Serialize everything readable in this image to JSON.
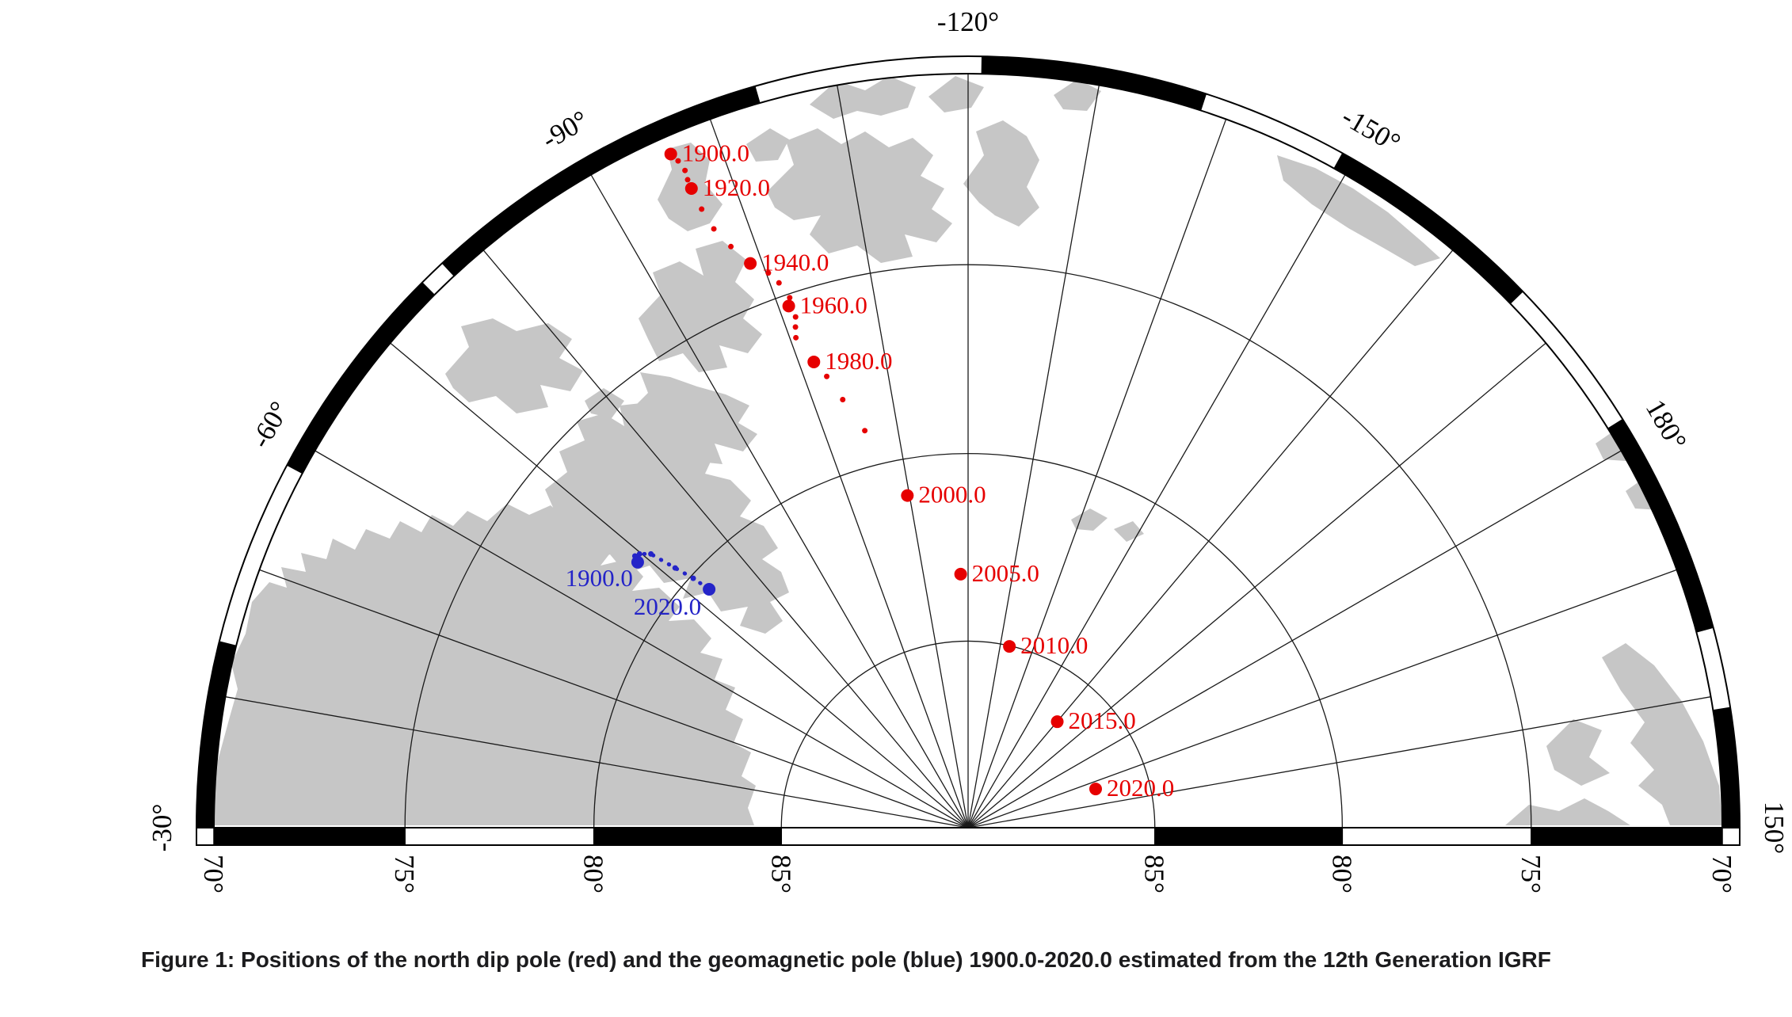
{
  "figure": {
    "caption": "Figure 1: Positions of the north dip pole (red) and the geomagnetic pole (blue) 1900.0-2020.0 estimated from the 12th Generation IGRF"
  },
  "chart_data": {
    "type": "scatter",
    "subtype": "polar-map-track",
    "projection": {
      "kind": "north-polar-stereographic",
      "lat_edge_deg": 70,
      "lon_top_deg": -120,
      "lon_left_edge_deg": -30,
      "lon_right_edge_deg": 150,
      "lon_grid_step_deg": 10,
      "lat_grid_circles_deg": [
        75,
        80,
        85
      ]
    },
    "colors": {
      "dip_pole": "#e60000",
      "geomagnetic_pole": "#2424c8",
      "land": "#c6c6c6",
      "grid": "#1a1a1a",
      "frame": "#000000"
    },
    "longitude_labels": [
      {
        "text": "-30°",
        "lon_deg": -30
      },
      {
        "text": "-60°",
        "lon_deg": -60
      },
      {
        "text": "-90°",
        "lon_deg": -90
      },
      {
        "text": "-120°",
        "lon_deg": -120
      },
      {
        "text": "-150°",
        "lon_deg": -150
      },
      {
        "text": "180°",
        "lon_deg": -180
      },
      {
        "text": "150°",
        "lon_deg": -210
      }
    ],
    "latitude_labels": [
      {
        "text": "70°",
        "lat_deg": 70,
        "side": "left"
      },
      {
        "text": "75°",
        "lat_deg": 75,
        "side": "left"
      },
      {
        "text": "80°",
        "lat_deg": 80,
        "side": "left"
      },
      {
        "text": "85°",
        "lat_deg": 85,
        "side": "left"
      },
      {
        "text": "85°",
        "lat_deg": 85,
        "side": "right"
      },
      {
        "text": "80°",
        "lat_deg": 80,
        "side": "right"
      },
      {
        "text": "75°",
        "lat_deg": 75,
        "side": "right"
      },
      {
        "text": "70°",
        "lat_deg": 70,
        "side": "right"
      }
    ],
    "series": [
      {
        "id": "dip_pole",
        "name": "north dip pole",
        "color_key": "dip_pole",
        "line_style": "none",
        "points": [
          {
            "year": "1900.0",
            "lat": 70.46,
            "lon": -96.19,
            "labeled": true,
            "label_anchor": "start",
            "label_dx": 14,
            "label_dy": 9
          },
          {
            "year": "1905.0",
            "lat": 70.7,
            "lon": -96.5,
            "labeled": false
          },
          {
            "year": "1910.0",
            "lat": 71.0,
            "lon": -96.7,
            "labeled": false
          },
          {
            "year": "1915.0",
            "lat": 71.25,
            "lon": -96.6,
            "labeled": false
          },
          {
            "year": "1920.0",
            "lat": 71.5,
            "lon": -96.6,
            "labeled": true,
            "label_anchor": "start",
            "label_dx": 14,
            "label_dy": 9
          },
          {
            "year": "1925.0",
            "lat": 72.1,
            "lon": -96.7,
            "labeled": false
          },
          {
            "year": "1930.0",
            "lat": 72.7,
            "lon": -97.0,
            "labeled": false
          },
          {
            "year": "1935.0",
            "lat": 73.3,
            "lon": -97.8,
            "labeled": false
          },
          {
            "year": "1940.0",
            "lat": 73.9,
            "lon": -98.9,
            "labeled": true,
            "label_anchor": "start",
            "label_dx": 14,
            "label_dy": 9
          },
          {
            "year": "1945.0",
            "lat": 74.3,
            "lon": -100.2,
            "labeled": false
          },
          {
            "year": "1950.0",
            "lat": 74.64,
            "lon": -100.86,
            "labeled": false
          },
          {
            "year": "1955.0",
            "lat": 75.1,
            "lon": -101.4,
            "labeled": false
          },
          {
            "year": "1960.0",
            "lat": 75.3,
            "lon": -101.03,
            "labeled": true,
            "label_anchor": "start",
            "label_dx": 14,
            "label_dy": 9
          },
          {
            "year": "1965.0",
            "lat": 75.63,
            "lon": -101.34,
            "labeled": false
          },
          {
            "year": "1970.0",
            "lat": 75.88,
            "lon": -100.98,
            "labeled": false
          },
          {
            "year": "1975.0",
            "lat": 76.15,
            "lon": -100.64,
            "labeled": false
          },
          {
            "year": "1980.0",
            "lat": 76.91,
            "lon": -101.68,
            "labeled": true,
            "label_anchor": "start",
            "label_dx": 14,
            "label_dy": 9
          },
          {
            "year": "1985.0",
            "lat": 77.38,
            "lon": -102.61,
            "labeled": false
          },
          {
            "year": "1990.0",
            "lat": 78.09,
            "lon": -103.68,
            "labeled": false
          },
          {
            "year": "1995.0",
            "lat": 79.04,
            "lon": -105.42,
            "labeled": false
          },
          {
            "year": "2000.0",
            "lat": 80.97,
            "lon": -109.64,
            "labeled": true,
            "label_anchor": "start",
            "label_dx": 14,
            "label_dy": 9
          },
          {
            "year": "2005.0",
            "lat": 83.21,
            "lon": -118.32,
            "labeled": true,
            "label_anchor": "start",
            "label_dx": 14,
            "label_dy": 9
          },
          {
            "year": "2010.0",
            "lat": 85.02,
            "lon": -132.83,
            "labeled": true,
            "label_anchor": "start",
            "label_dx": 14,
            "label_dy": 9
          },
          {
            "year": "2015.0",
            "lat": 86.29,
            "lon": -160.06,
            "labeled": true,
            "label_anchor": "start",
            "label_dx": 14,
            "label_dy": 9
          },
          {
            "year": "2020.0",
            "lat": 86.43,
            "lon": 166.9,
            "labeled": true,
            "label_anchor": "start",
            "label_dx": 14,
            "label_dy": 9
          }
        ]
      },
      {
        "id": "geomagnetic_pole",
        "name": "geomagnetic pole",
        "color_key": "geomagnetic_pole",
        "line_style": "dotted",
        "points": [
          {
            "year": "1900.0",
            "lat": 78.68,
            "lon": -68.79,
            "labeled": true,
            "label_anchor": "end",
            "label_dx": -6,
            "label_dy": 30
          },
          {
            "year": "1920.0",
            "lat": 78.63,
            "lon": -68.6,
            "labeled": false
          },
          {
            "year": "1940.0",
            "lat": 78.52,
            "lon": -69.2,
            "labeled": false
          },
          {
            "year": "1960.0",
            "lat": 78.58,
            "lon": -69.8,
            "labeled": false
          },
          {
            "year": "1980.0",
            "lat": 78.81,
            "lon": -70.8,
            "labeled": false
          },
          {
            "year": "2000.0",
            "lat": 79.54,
            "lon": -71.57,
            "labeled": false
          },
          {
            "year": "2010.0",
            "lat": 80.08,
            "lon": -72.22,
            "labeled": false
          },
          {
            "year": "2020.0",
            "lat": 80.59,
            "lon": -72.64,
            "labeled": true,
            "label_anchor": "end",
            "label_dx": -10,
            "label_dy": 32
          }
        ]
      }
    ]
  }
}
